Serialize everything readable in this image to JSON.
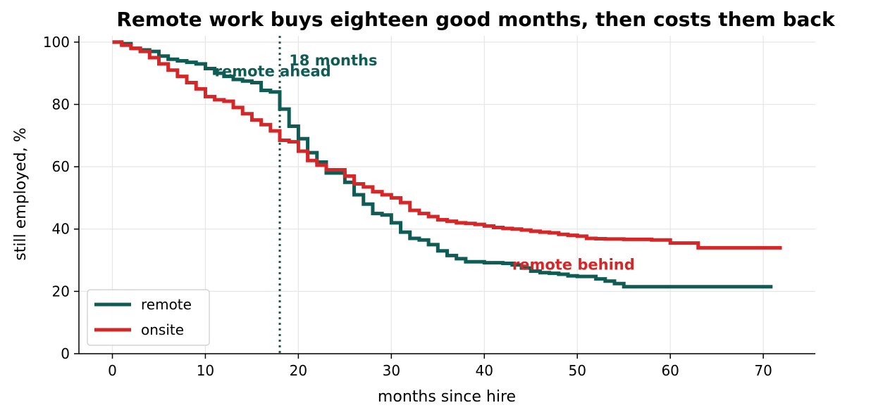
{
  "chart_data": {
    "type": "line",
    "title": "Remote work buys eighteen good months, then costs them back",
    "xlabel": "months since hire",
    "ylabel": "still employed, %",
    "xlim": [
      -3.6,
      75.6
    ],
    "ylim": [
      0,
      102
    ],
    "xticks": [
      0,
      10,
      20,
      30,
      40,
      50,
      60,
      70
    ],
    "yticks": [
      0,
      20,
      40,
      60,
      80,
      100
    ],
    "grid": true,
    "legend_position": "lower-left",
    "vline": {
      "x": 18,
      "style": "dotted",
      "color": "#0f5c55"
    },
    "annotations": [
      {
        "text": "18 months",
        "x": 19,
        "y": 92.5,
        "color": "#0f5c55"
      },
      {
        "text": "remote ahead",
        "x": 11,
        "y": 89,
        "color": "#0f5c55"
      },
      {
        "text": "remote behind",
        "x": 43,
        "y": 27,
        "color": "#d62728"
      }
    ],
    "series": [
      {
        "name": "remote",
        "color": "#0f5c55",
        "step": true,
        "x": [
          0,
          1,
          2,
          3,
          4,
          5,
          6,
          7,
          8,
          9,
          10,
          11,
          12,
          13,
          14,
          15,
          16,
          17,
          18,
          19,
          20,
          21,
          22,
          23,
          24,
          25,
          26,
          27,
          28,
          29,
          30,
          31,
          32,
          33,
          34,
          35,
          36,
          37,
          38,
          40,
          42,
          43,
          44,
          45,
          46,
          47,
          48,
          49,
          50,
          52,
          53,
          54,
          55,
          60,
          71
        ],
        "values": [
          100,
          99.5,
          98,
          97.5,
          97,
          95.5,
          94.5,
          94,
          93.5,
          93,
          91.5,
          90,
          89,
          88,
          87.5,
          87,
          84.5,
          84,
          78.5,
          73,
          69,
          64.5,
          61.5,
          58,
          58,
          55,
          51,
          48,
          45,
          44.5,
          42,
          39,
          37,
          36.5,
          35,
          33,
          31.5,
          30.5,
          29.5,
          29.2,
          29,
          28.5,
          27.5,
          26.5,
          26,
          25.8,
          25.5,
          25,
          24.8,
          24,
          23.3,
          22.5,
          21.5,
          21.5,
          21.5
        ]
      },
      {
        "name": "onsite",
        "color": "#d62728",
        "step": true,
        "x": [
          0,
          1,
          2,
          3,
          4,
          5,
          6,
          7,
          8,
          9,
          10,
          11,
          12,
          13,
          14,
          15,
          16,
          17,
          18,
          19,
          20,
          21,
          22,
          23,
          25,
          26,
          27,
          28,
          29,
          30,
          31,
          32,
          33,
          34,
          35,
          36,
          37,
          38,
          39,
          40,
          41,
          42,
          43,
          44,
          45,
          46,
          47,
          48,
          49,
          50,
          51,
          52,
          53,
          55,
          58,
          60,
          63,
          72
        ],
        "values": [
          100,
          99,
          98,
          97,
          95,
          93,
          91,
          89,
          87,
          85,
          82.5,
          81.5,
          81,
          79,
          77,
          75,
          73.5,
          71.5,
          68.5,
          68,
          65,
          62,
          60.5,
          59,
          57,
          54.5,
          53.5,
          52,
          51,
          50,
          48.5,
          46,
          45,
          44,
          43,
          42.5,
          42,
          41.8,
          41.5,
          41,
          40.5,
          40.2,
          40,
          39.7,
          39.3,
          39,
          38.8,
          38.3,
          38,
          37.7,
          37,
          36.9,
          36.8,
          36.7,
          36.5,
          35.5,
          34,
          34
        ]
      }
    ]
  }
}
